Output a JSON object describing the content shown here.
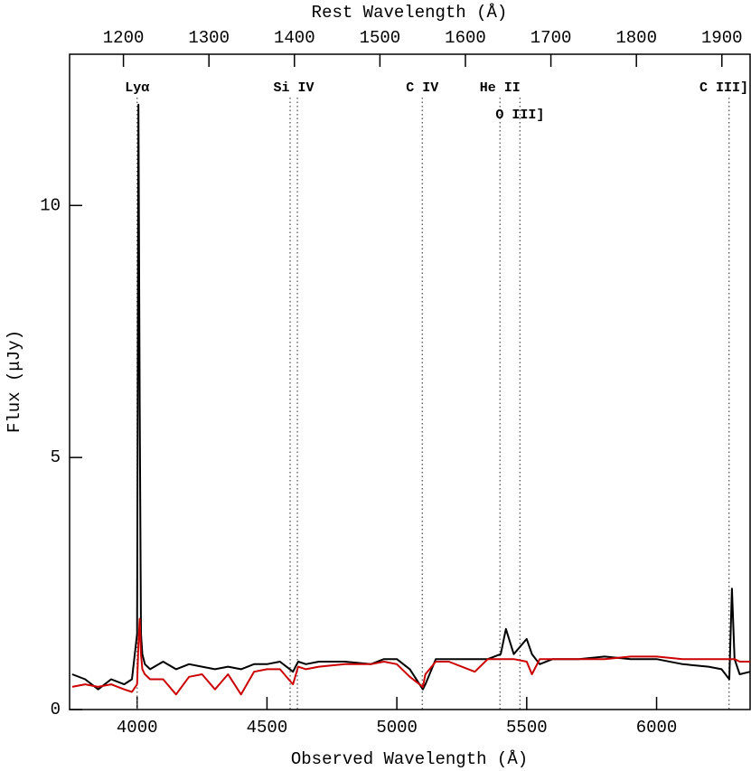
{
  "chart_data": {
    "type": "line",
    "xlabel": "Observed Wavelength (Å)",
    "ylabel": "Flux (μJy)",
    "x2label": "Rest Wavelength (Å)",
    "xlim": [
      3740,
      6360
    ],
    "xticks": [
      4000,
      4500,
      5000,
      5500,
      6000
    ],
    "x2lim": [
      1137,
      1933
    ],
    "x2ticks": [
      1200,
      1300,
      1400,
      1500,
      1600,
      1700,
      1800,
      1900
    ],
    "ylim": [
      0,
      13
    ],
    "yticks": [
      0,
      5,
      10
    ],
    "x": [
      3750,
      3800,
      3850,
      3900,
      3950,
      3980,
      4000,
      4005,
      4010,
      4015,
      4020,
      4030,
      4050,
      4100,
      4150,
      4200,
      4250,
      4300,
      4350,
      4400,
      4450,
      4500,
      4550,
      4600,
      4620,
      4650,
      4700,
      4800,
      4900,
      4950,
      5000,
      5050,
      5100,
      5110,
      5150,
      5200,
      5300,
      5350,
      5400,
      5420,
      5450,
      5500,
      5520,
      5550,
      5600,
      5700,
      5800,
      5900,
      6000,
      6100,
      6200,
      6250,
      6280,
      6290,
      6300,
      6320,
      6360
    ],
    "series": [
      {
        "color": "#000000",
        "values": [
          0.7,
          0.6,
          0.4,
          0.6,
          0.5,
          0.6,
          1.5,
          12.0,
          6.0,
          1.5,
          1.1,
          0.9,
          0.8,
          0.95,
          0.8,
          0.9,
          0.85,
          0.8,
          0.85,
          0.8,
          0.9,
          0.9,
          0.95,
          0.75,
          0.95,
          0.9,
          0.95,
          0.95,
          0.9,
          1.0,
          1.0,
          0.8,
          0.4,
          0.5,
          1.0,
          1.0,
          1.0,
          1.0,
          1.1,
          1.6,
          1.1,
          1.4,
          1.1,
          0.9,
          1.0,
          1.0,
          1.05,
          1.0,
          1.0,
          0.9,
          0.85,
          0.8,
          0.6,
          2.4,
          1.0,
          0.7,
          0.75
        ]
      },
      {
        "color": "#cc0000",
        "values": [
          0.45,
          0.5,
          0.45,
          0.5,
          0.4,
          0.35,
          0.5,
          1.3,
          1.8,
          1.1,
          0.8,
          0.7,
          0.6,
          0.6,
          0.3,
          0.65,
          0.7,
          0.4,
          0.7,
          0.3,
          0.75,
          0.8,
          0.8,
          0.5,
          0.85,
          0.8,
          0.85,
          0.9,
          0.9,
          0.95,
          0.9,
          0.65,
          0.45,
          0.7,
          0.95,
          0.95,
          0.75,
          1.0,
          1.0,
          1.0,
          1.0,
          0.95,
          0.7,
          1.0,
          1.0,
          1.0,
          1.0,
          1.05,
          1.05,
          1.0,
          1.0,
          1.0,
          1.0,
          1.0,
          1.0,
          0.95,
          0.95
        ]
      }
    ],
    "lines": [
      {
        "label": "Lyα",
        "x": [
          4000
        ]
      },
      {
        "label": "Si IV",
        "x": [
          4589,
          4617
        ]
      },
      {
        "label": "C IV",
        "x": [
          5098
        ]
      },
      {
        "label": "He II",
        "x": [
          5397
        ]
      },
      {
        "label": "O III]",
        "x": [
          5474
        ]
      },
      {
        "label": "C III]",
        "x": [
          6279
        ]
      }
    ]
  }
}
